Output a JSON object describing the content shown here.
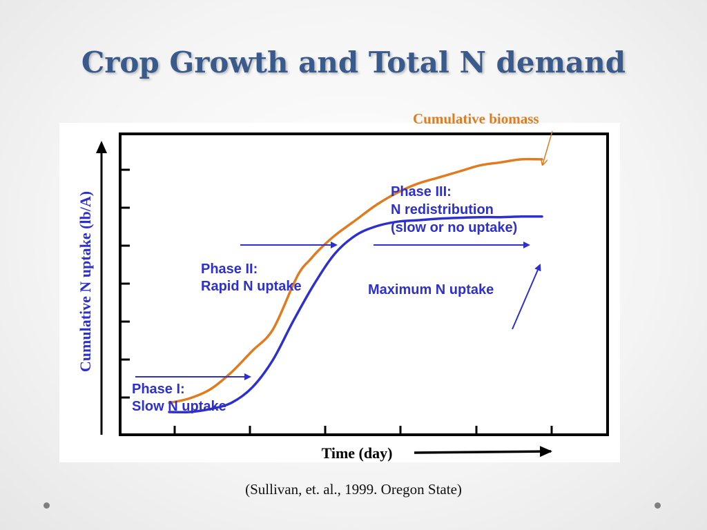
{
  "title": "Crop Growth and Total N demand",
  "citation": "(Sullivan, et. al., 1999. Oregon State)",
  "chart_data": {
    "type": "line",
    "xlabel": "Time (day)",
    "ylabel": "Cumulative N uptake (lb/A)",
    "grid": false,
    "series": [
      {
        "name": "Cumulative biomass",
        "color": "#e07b1f",
        "x": [
          0,
          5,
          10,
          15,
          20,
          25,
          30,
          32,
          34,
          36,
          40,
          45,
          50,
          55,
          60,
          65,
          70,
          75,
          80,
          85,
          90
        ],
        "y": [
          0.03,
          0.045,
          0.075,
          0.13,
          0.2,
          0.27,
          0.42,
          0.47,
          0.5,
          0.53,
          0.58,
          0.63,
          0.68,
          0.72,
          0.75,
          0.77,
          0.79,
          0.81,
          0.82,
          0.83,
          0.83
        ]
      },
      {
        "name": "Maximum N uptake",
        "color": "#2d2fcf",
        "x": [
          0,
          5,
          10,
          15,
          20,
          25,
          30,
          35,
          40,
          45,
          50,
          55,
          60,
          65,
          70,
          75,
          80,
          85,
          90
        ],
        "y": [
          0.0,
          0.0,
          0.01,
          0.03,
          0.08,
          0.17,
          0.3,
          0.42,
          0.52,
          0.58,
          0.61,
          0.625,
          0.63,
          0.635,
          0.638,
          0.64,
          0.64,
          0.642,
          0.642
        ]
      }
    ],
    "annotations": {
      "biomass": "Cumulative biomass",
      "phase1_line1": "Phase I:",
      "phase1_line2": "Slow N uptake",
      "phase2_line1": "Phase II:",
      "phase2_line2": "Rapid N uptake",
      "phase3_line1": "Phase III:",
      "phase3_line2": "N redistribution",
      "phase3_line3": "(slow or no uptake)",
      "max_uptake": "Maximum N uptake"
    }
  }
}
